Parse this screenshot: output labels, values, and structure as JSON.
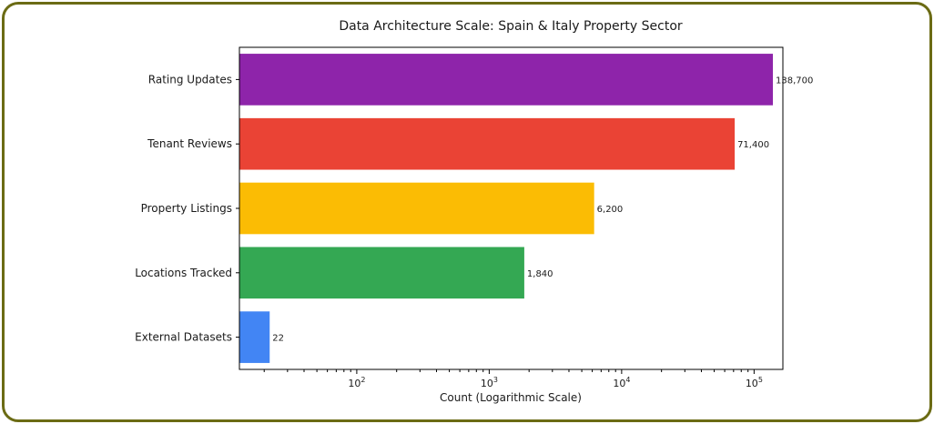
{
  "chart_data": {
    "type": "bar",
    "orientation": "horizontal",
    "title": "Data Architecture Scale: Spain & Italy Property Sector",
    "xlabel": "Count (Logarithmic Scale)",
    "ylabel": "",
    "xscale": "log",
    "xlim": [
      13,
      165000
    ],
    "grid": false,
    "categories": [
      "External Datasets",
      "Locations Tracked",
      "Property Listings",
      "Tenant Reviews",
      "Rating Updates"
    ],
    "values": [
      22,
      1840,
      6200,
      71400,
      138700
    ],
    "value_labels": [
      "22",
      "1,840",
      "6,200",
      "71,400",
      "138,700"
    ],
    "colors": [
      "#4285f4",
      "#34a853",
      "#fbbc04",
      "#ea4335",
      "#8e24aa"
    ],
    "xticks": [
      {
        "value": 100,
        "base": "10",
        "exp": "2"
      },
      {
        "value": 1000,
        "base": "10",
        "exp": "3"
      },
      {
        "value": 10000,
        "base": "10",
        "exp": "4"
      },
      {
        "value": 100000,
        "base": "10",
        "exp": "5"
      }
    ]
  }
}
